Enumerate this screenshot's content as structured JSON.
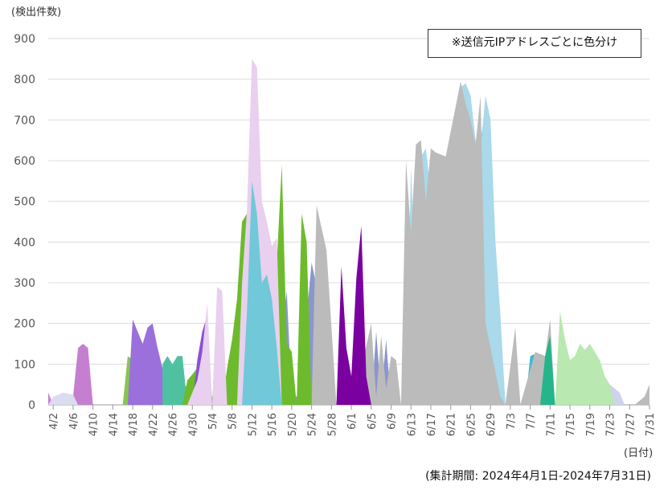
{
  "chart_data": {
    "type": "area",
    "ylabel": "(検出件数)",
    "xlabel": "(日付)",
    "legend_note": "※送信元IPアドレスごとに色分け",
    "period_note": "(集計期間: 2024年4月1日-2024年7月31日)",
    "ylim": [
      0,
      900
    ],
    "yticks": [
      0,
      100,
      200,
      300,
      400,
      500,
      600,
      700,
      800,
      900
    ],
    "grid": true,
    "stacked": true,
    "x_range": [
      "4/1",
      "7/31"
    ],
    "xtick_labels": [
      "4/2",
      "4/6",
      "4/10",
      "4/14",
      "4/18",
      "4/22",
      "4/26",
      "4/30",
      "5/4",
      "5/8",
      "5/12",
      "5/16",
      "5/20",
      "5/24",
      "5/28",
      "6/1",
      "6/5",
      "6/9",
      "6/13",
      "6/17",
      "6/21",
      "6/25",
      "6/29",
      "7/3",
      "7/7",
      "7/11",
      "7/15",
      "7/19",
      "7/23",
      "7/27",
      "7/31"
    ],
    "series": [
      {
        "color": "#8a96cc",
        "points": [
          [
            "5/10",
            0
          ],
          [
            "5/12",
            50
          ],
          [
            "5/13",
            310
          ],
          [
            "5/14",
            180
          ],
          [
            "5/15",
            60
          ],
          [
            "5/17",
            80
          ],
          [
            "5/19",
            280
          ],
          [
            "5/20",
            20
          ],
          [
            "5/21",
            20
          ],
          [
            "5/22",
            80
          ],
          [
            "5/24",
            350
          ],
          [
            "5/25",
            290
          ],
          [
            "5/26",
            0
          ],
          [
            "5/27",
            280
          ],
          [
            "5/28",
            90
          ],
          [
            "5/29",
            0
          ],
          [
            "5/30",
            160
          ],
          [
            "5/31",
            20
          ],
          [
            "6/1",
            10
          ],
          [
            "6/2",
            130
          ],
          [
            "6/3",
            60
          ],
          [
            "6/4",
            80
          ],
          [
            "6/5",
            0
          ],
          [
            "6/6",
            180
          ],
          [
            "6/7",
            20
          ],
          [
            "6/8",
            160
          ],
          [
            "6/9",
            0
          ],
          [
            "7/2",
            0
          ],
          [
            "7/4",
            170
          ],
          [
            "7/5",
            0
          ],
          [
            "7/13",
            0
          ],
          [
            "7/14",
            90
          ],
          [
            "7/15",
            40
          ],
          [
            "7/16",
            40
          ],
          [
            "7/18",
            50
          ],
          [
            "7/20",
            50
          ],
          [
            "7/22",
            50
          ],
          [
            "7/24",
            10
          ],
          [
            "7/25",
            0
          ]
        ]
      },
      {
        "color": "#cdd3ee",
        "points": [
          [
            "7/15",
            0
          ],
          [
            "7/17",
            50
          ],
          [
            "7/19",
            60
          ],
          [
            "7/21",
            55
          ],
          [
            "7/23",
            50
          ],
          [
            "7/25",
            30
          ],
          [
            "7/26",
            0
          ]
        ]
      },
      {
        "color": "#004aa0",
        "points": [
          [
            "6/12",
            0
          ],
          [
            "6/14",
            430
          ],
          [
            "6/15",
            220
          ],
          [
            "6/16",
            480
          ],
          [
            "6/17",
            470
          ],
          [
            "6/18",
            380
          ],
          [
            "6/19",
            240
          ],
          [
            "6/20",
            440
          ],
          [
            "6/21",
            470
          ],
          [
            "6/22",
            250
          ],
          [
            "6/23",
            400
          ],
          [
            "6/24",
            460
          ],
          [
            "6/25",
            430
          ],
          [
            "6/26",
            440
          ],
          [
            "6/28",
            450
          ],
          [
            "6/29",
            470
          ],
          [
            "6/30",
            360
          ],
          [
            "7/1",
            0
          ]
        ]
      },
      {
        "color": "#3fbad2",
        "points": [
          [
            "6/21",
            0
          ],
          [
            "6/22",
            430
          ],
          [
            "6/24",
            660
          ],
          [
            "6/26",
            570
          ],
          [
            "6/28",
            730
          ],
          [
            "6/30",
            350
          ],
          [
            "7/1",
            200
          ],
          [
            "7/2",
            0
          ],
          [
            "7/6",
            0
          ],
          [
            "7/7",
            120
          ],
          [
            "7/8",
            125
          ],
          [
            "7/9",
            120
          ],
          [
            "7/10",
            0
          ]
        ]
      },
      {
        "color": "#a9d9ea",
        "points": [
          [
            "6/12",
            0
          ],
          [
            "6/13",
            580
          ],
          [
            "6/14",
            300
          ],
          [
            "6/15",
            610
          ],
          [
            "6/16",
            630
          ],
          [
            "6/17",
            520
          ],
          [
            "6/18",
            560
          ],
          [
            "6/19",
            450
          ],
          [
            "6/20",
            610
          ],
          [
            "6/21",
            580
          ],
          [
            "6/22",
            560
          ],
          [
            "6/23",
            780
          ],
          [
            "6/24",
            790
          ],
          [
            "6/25",
            760
          ],
          [
            "6/26",
            650
          ],
          [
            "6/27",
            630
          ],
          [
            "6/28",
            760
          ],
          [
            "6/29",
            700
          ],
          [
            "6/30",
            400
          ],
          [
            "7/1",
            220
          ],
          [
            "7/2",
            0
          ]
        ]
      },
      {
        "color": "#bbbbbb",
        "points": [
          [
            "5/24",
            0
          ],
          [
            "5/25",
            490
          ],
          [
            "5/27",
            380
          ],
          [
            "5/29",
            0
          ],
          [
            "6/1",
            60
          ],
          [
            "6/2",
            120
          ],
          [
            "6/3",
            90
          ],
          [
            "6/5",
            200
          ],
          [
            "6/6",
            20
          ],
          [
            "6/7",
            170
          ],
          [
            "6/8",
            40
          ],
          [
            "6/9",
            120
          ],
          [
            "6/10",
            110
          ],
          [
            "6/11",
            0
          ],
          [
            "6/12",
            600
          ],
          [
            "6/13",
            420
          ],
          [
            "6/14",
            640
          ],
          [
            "6/15",
            650
          ],
          [
            "6/16",
            500
          ],
          [
            "6/17",
            630
          ],
          [
            "6/18",
            620
          ],
          [
            "6/20",
            610
          ],
          [
            "6/23",
            795
          ],
          [
            "6/24",
            740
          ],
          [
            "6/25",
            700
          ],
          [
            "6/26",
            640
          ],
          [
            "6/27",
            760
          ],
          [
            "6/28",
            200
          ],
          [
            "7/1",
            20
          ],
          [
            "7/2",
            0
          ],
          [
            "7/4",
            190
          ],
          [
            "7/5",
            0
          ],
          [
            "7/8",
            130
          ],
          [
            "7/10",
            120
          ],
          [
            "7/11",
            210
          ],
          [
            "7/12",
            0
          ],
          [
            "7/13",
            0
          ],
          [
            "7/14",
            70
          ],
          [
            "7/15",
            0
          ],
          [
            "7/28",
            0
          ],
          [
            "7/30",
            20
          ],
          [
            "7/31",
            50
          ]
        ]
      },
      {
        "color": "#7b00a0",
        "points": [
          [
            "5/29",
            0
          ],
          [
            "5/30",
            340
          ],
          [
            "5/31",
            140
          ],
          [
            "6/1",
            70
          ],
          [
            "6/2",
            310
          ],
          [
            "6/3",
            440
          ],
          [
            "6/4",
            70
          ],
          [
            "6/5",
            0
          ]
        ]
      },
      {
        "color": "#c57fd0",
        "points": [
          [
            "4/1",
            30
          ],
          [
            "4/2",
            0
          ],
          [
            "4/3",
            20
          ],
          [
            "4/6",
            20
          ],
          [
            "4/7",
            140
          ],
          [
            "4/8",
            150
          ],
          [
            "4/9",
            140
          ],
          [
            "4/10",
            0
          ]
        ]
      },
      {
        "color": "#dcdcf0",
        "points": [
          [
            "4/1",
            0
          ],
          [
            "4/2",
            20
          ],
          [
            "4/4",
            30
          ],
          [
            "4/6",
            25
          ],
          [
            "4/7",
            0
          ]
        ]
      },
      {
        "color": "#88c550",
        "points": [
          [
            "4/16",
            0
          ],
          [
            "4/17",
            120
          ],
          [
            "4/19",
            100
          ],
          [
            "4/20",
            130
          ],
          [
            "4/21",
            90
          ],
          [
            "4/22",
            100
          ],
          [
            "4/23",
            130
          ],
          [
            "4/24",
            40
          ],
          [
            "4/25",
            100
          ],
          [
            "4/26",
            20
          ],
          [
            "4/27",
            40
          ],
          [
            "4/28",
            60
          ],
          [
            "4/29",
            40
          ],
          [
            "4/30",
            0
          ]
        ]
      },
      {
        "color": "#9b6fdc",
        "points": [
          [
            "4/17",
            0
          ],
          [
            "4/18",
            210
          ],
          [
            "4/20",
            150
          ],
          [
            "4/21",
            190
          ],
          [
            "4/22",
            200
          ],
          [
            "4/23",
            140
          ],
          [
            "4/24",
            90
          ],
          [
            "4/25",
            0
          ]
        ]
      },
      {
        "color": "#4fc1a0",
        "points": [
          [
            "4/24",
            100
          ],
          [
            "4/25",
            120
          ],
          [
            "4/26",
            100
          ],
          [
            "4/27",
            120
          ],
          [
            "4/28",
            120
          ],
          [
            "4/29",
            0
          ]
        ]
      },
      {
        "color": "#6dbb2c",
        "points": [
          [
            "4/28",
            0
          ],
          [
            "4/29",
            60
          ],
          [
            "5/1",
            90
          ],
          [
            "5/2",
            60
          ],
          [
            "5/3",
            80
          ],
          [
            "5/4",
            20
          ],
          [
            "5/5",
            40
          ],
          [
            "5/6",
            0
          ],
          [
            "5/7",
            90
          ],
          [
            "5/8",
            160
          ],
          [
            "5/9",
            260
          ],
          [
            "5/10",
            450
          ],
          [
            "5/11",
            470
          ],
          [
            "5/12",
            800
          ],
          [
            "5/13",
            780
          ],
          [
            "5/14",
            460
          ],
          [
            "5/15",
            370
          ],
          [
            "5/16",
            330
          ],
          [
            "5/17",
            350
          ],
          [
            "5/18",
            590
          ],
          [
            "5/19",
            150
          ],
          [
            "5/20",
            130
          ],
          [
            "5/21",
            0
          ],
          [
            "5/22",
            470
          ],
          [
            "5/23",
            400
          ],
          [
            "5/24",
            0
          ]
        ]
      },
      {
        "color": "#8a4fd8",
        "points": [
          [
            "4/30",
            0
          ],
          [
            "5/1",
            110
          ],
          [
            "5/2",
            180
          ],
          [
            "5/3",
            220
          ],
          [
            "5/4",
            0
          ],
          [
            "5/5",
            260
          ],
          [
            "5/6",
            200
          ],
          [
            "5/7",
            0
          ]
        ]
      },
      {
        "color": "#e8d0ee",
        "points": [
          [
            "4/29",
            0
          ],
          [
            "5/1",
            60
          ],
          [
            "5/2",
            130
          ],
          [
            "5/3",
            250
          ],
          [
            "5/4",
            0
          ],
          [
            "5/5",
            290
          ],
          [
            "5/6",
            280
          ],
          [
            "5/7",
            0
          ],
          [
            "5/9",
            0
          ],
          [
            "5/10",
            300
          ],
          [
            "5/11",
            480
          ],
          [
            "5/12",
            850
          ],
          [
            "5/13",
            830
          ],
          [
            "5/14",
            500
          ],
          [
            "5/15",
            450
          ],
          [
            "5/16",
            390
          ],
          [
            "5/17",
            410
          ],
          [
            "5/18",
            0
          ]
        ]
      },
      {
        "color": "#70c8d8",
        "points": [
          [
            "5/10",
            0
          ],
          [
            "5/11",
            230
          ],
          [
            "5/12",
            550
          ],
          [
            "5/13",
            470
          ],
          [
            "5/14",
            300
          ],
          [
            "5/15",
            320
          ],
          [
            "5/16",
            260
          ],
          [
            "5/17",
            140
          ],
          [
            "5/18",
            0
          ]
        ]
      },
      {
        "color": "#b9e8b0",
        "points": [
          [
            "7/12",
            0
          ],
          [
            "7/13",
            230
          ],
          [
            "7/14",
            160
          ],
          [
            "7/15",
            110
          ],
          [
            "7/16",
            120
          ],
          [
            "7/17",
            150
          ],
          [
            "7/18",
            135
          ],
          [
            "7/19",
            150
          ],
          [
            "7/20",
            130
          ],
          [
            "7/21",
            110
          ],
          [
            "7/22",
            70
          ],
          [
            "7/23",
            50
          ],
          [
            "7/24",
            0
          ]
        ]
      },
      {
        "color": "#25b58a",
        "points": [
          [
            "7/9",
            0
          ],
          [
            "7/10",
            120
          ],
          [
            "7/11",
            170
          ],
          [
            "7/12",
            0
          ]
        ]
      }
    ]
  }
}
